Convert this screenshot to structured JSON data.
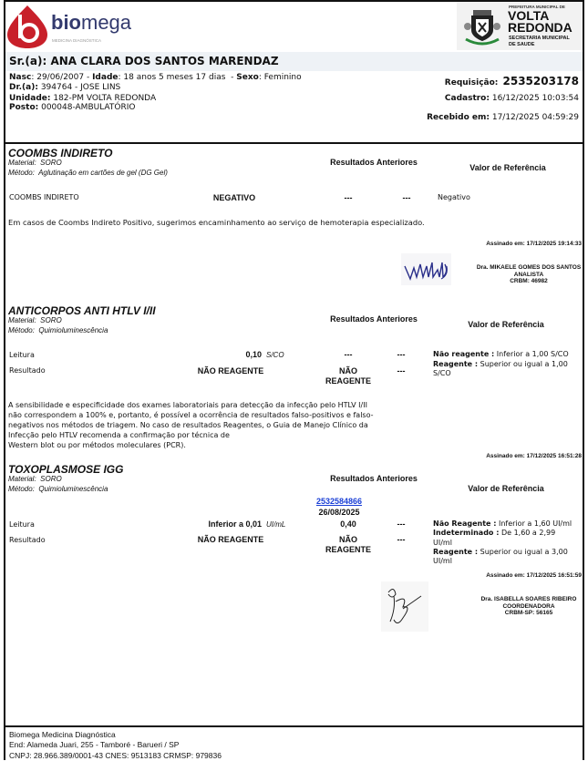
{
  "header": {
    "lab_logo": {
      "brand": "biomega",
      "tagline": "MEDICINA DIAGNÓSTICA",
      "color": "#c8202a"
    },
    "gov_logo": {
      "line1": "PREFEITURA MUNICIPAL DE",
      "line2": "VOLTA",
      "line3": "REDONDA",
      "line4": "SECRETARIA MUNICIPAL",
      "line5": "DE SAUDE"
    }
  },
  "patient": {
    "name_label": "Sr.(a):",
    "name": "ANA CLARA DOS SANTOS MARENDAZ",
    "nasc_label": "Nasc",
    "nasc": "29/06/2007",
    "idade_label": "Idade",
    "idade": "18 anos 5 meses 17 dias",
    "sexo_label": "Sexo",
    "sexo": "Feminino",
    "dr_label": "Dr.(a):",
    "dr": "394764 - JOSE LINS",
    "unidade_label": "Unidade:",
    "unidade": "182-PM VOLTA REDONDA",
    "posto_label": "Posto:",
    "posto": "000048-AMBULATÓRIO",
    "requisicao_label": "Requisição:",
    "requisicao": "2535203178",
    "cadastro_label": "Cadastro:",
    "cadastro": "16/12/2025 10:03:54",
    "recebido_label": "Recebido em:",
    "recebido": "17/12/2025 04:59:29"
  },
  "common": {
    "material_label": "Material:",
    "metodo_label": "Método:",
    "previous_header": "Resultados Anteriores",
    "reference_header": "Valor de Referência",
    "dash": "---"
  },
  "exams": [
    {
      "title": "COOMBS INDIRETO",
      "material": "SORO",
      "metodo": "Aglutinação em cartões de gel (DG Gel)",
      "rows": [
        {
          "label": "COOMBS INDIRETO",
          "value": "NEGATIVO",
          "prev1": "---",
          "prev2": "---",
          "reference": "Negativo"
        }
      ],
      "note": "Em casos de Coombs Indireto Positivo, sugerimos encaminhamento ao serviço de hemoterapia especializado.",
      "signed": "Assinado em: 17/12/2025 19:14:33",
      "signer": {
        "name": "Dra. MIKAELE GOMES DOS SANTOS",
        "role": "ANALISTA",
        "reg": "CRBM: 46982"
      }
    },
    {
      "title": "ANTICORPOS ANTI HTLV I/II",
      "material": "SORO",
      "metodo": "Quimioluminescência",
      "rows": [
        {
          "label": "Leitura",
          "value": "0,10",
          "unit": "S/CO",
          "prev1": "---",
          "prev2": "---"
        },
        {
          "label": "Resultado",
          "value": "NÃO REAGENTE",
          "prev1a": "NÃO",
          "prev1b": "REAGENTE",
          "prev2": "---"
        }
      ],
      "reference": [
        {
          "k": "Não reagente :",
          "v": "Inferior a 1,00 S/CO"
        },
        {
          "k": "Reagente :",
          "v": "Superior ou igual a 1,00",
          "v2": "S/CO"
        }
      ],
      "note_lines": [
        "A sensibilidade e especificidade dos exames laboratoriais para detecção da infecção pelo HTLV I/II",
        "não correspondem a 100% e, portanto, é possível a ocorrência de resultados falso-positivos e falso-",
        "negativos nos métodos de triagem. No caso de resultados Reagentes, o Guia de Manejo Clínico da",
        "Infecção pelo HTLV recomenda a confirmação por técnica de",
        "Western blot ou por métodos moleculares (PCR)."
      ],
      "signed": "Assinado em: 17/12/2025 16:51:28"
    },
    {
      "title": "TOXOPLASMOSE IGG",
      "material": "SORO",
      "metodo": "Quimioluminescência",
      "prev_link": "2532584866",
      "prev_date": "26/08/2025",
      "rows": [
        {
          "label": "Leitura",
          "value": "Inferior a 0,01",
          "unit": "UI/mL",
          "prev1": "0,40",
          "prev2": "---"
        },
        {
          "label": "Resultado",
          "value": "NÃO REAGENTE",
          "prev1a": "NÃO",
          "prev1b": "REAGENTE",
          "prev2": "---"
        }
      ],
      "reference": [
        {
          "k": "Não Reagente :",
          "v": "Inferior a 1,60 UI/ml"
        },
        {
          "k": "Indeterminado :",
          "v": "De 1,60 a 2,99",
          "v2": "UI/ml"
        },
        {
          "k": "Reagente :",
          "v": "Superior ou igual a 3,00",
          "v2": "UI/ml"
        }
      ],
      "signed": "Assinado em: 17/12/2025 16:51:59",
      "signer": {
        "name": "Dra. ISABELLA SOARES RIBEIRO",
        "role": "COORDENADORA",
        "reg": "CRBM-SP: 56165"
      }
    }
  ],
  "footer": {
    "line1": "Biomega Medicina Diagnóstica",
    "line2": "End: Alameda Juari, 255 - Tamboré - Barueri / SP",
    "line3": "CNPJ: 28.966.389/0001-43 CNES: 9513183 CRMSP: 979836"
  }
}
